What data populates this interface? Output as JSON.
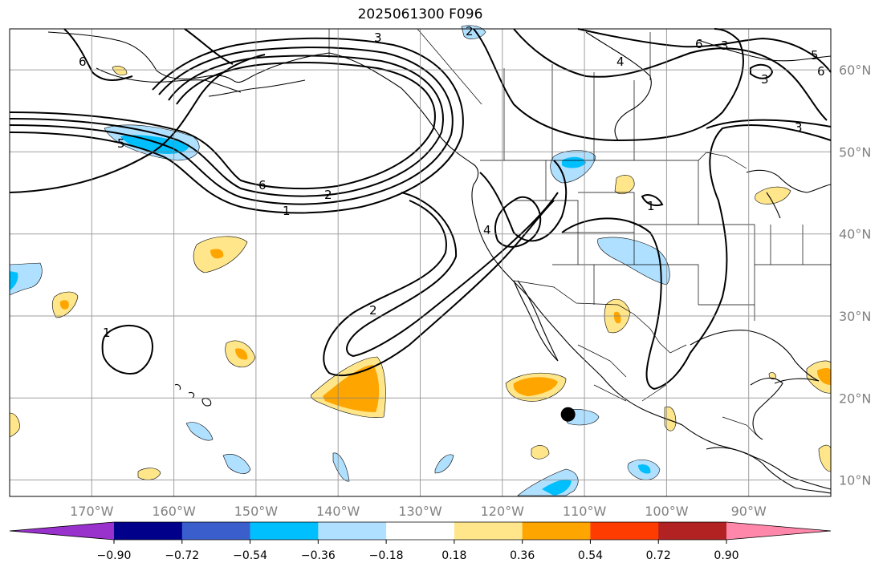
{
  "title": "2025061300 F096",
  "map": {
    "projection": "cylindrical",
    "lon_range": [
      -180,
      -80
    ],
    "lat_range": [
      8,
      65
    ],
    "graticule_step_deg": 10,
    "lon_labels": [
      "170°W",
      "160°W",
      "150°W",
      "140°W",
      "130°W",
      "120°W",
      "110°W",
      "100°W",
      "90°W"
    ],
    "lat_labels": [
      "60°N",
      "50°N",
      "40°N",
      "30°N",
      "20°N",
      "10°N"
    ],
    "colors": {
      "background": "#ffffff",
      "gridlines": "#808080",
      "coastlines": "#000000",
      "contours": "#000000"
    },
    "contour_labels": [
      "3",
      "2",
      "6",
      "4",
      "6",
      "3",
      "5",
      "3",
      "3",
      "6",
      "5",
      "6",
      "2",
      "1",
      "4",
      "1",
      "2",
      "1"
    ],
    "marker": {
      "lon": -112,
      "lat": 18,
      "color": "#000000"
    }
  },
  "colorbar": {
    "tick_labels": [
      "−0.90",
      "−0.72",
      "−0.54",
      "−0.36",
      "−0.18",
      "0.18",
      "0.36",
      "0.54",
      "0.72",
      "0.90"
    ],
    "bounds": [
      -0.9,
      -0.72,
      -0.54,
      -0.36,
      -0.18,
      0.18,
      0.36,
      0.54,
      0.72,
      0.9
    ],
    "colors": [
      "#9932cc",
      "#00008b",
      "#3a5fcd",
      "#00bfff",
      "#b0e0ff",
      "#ffffff",
      "#ffe68a",
      "#ffa500",
      "#ff3c00",
      "#b22222",
      "#ff88aa"
    ],
    "extend": "both"
  }
}
